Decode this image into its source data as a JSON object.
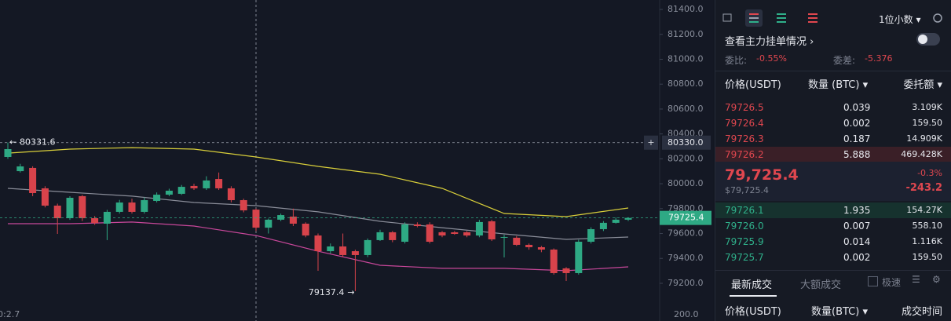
{
  "chart_data": {
    "type": "candlestick",
    "up_color": "#2ea984",
    "down_color": "#d8434b",
    "ylim": [
      79080,
      81476
    ],
    "yticks": [
      {
        "value": 81400,
        "label": "81400.0"
      },
      {
        "value": 81200,
        "label": "81200.0"
      },
      {
        "value": 81000,
        "label": "81000.0"
      },
      {
        "value": 80800,
        "label": "80800.0"
      },
      {
        "value": 80600,
        "label": "80600.0"
      },
      {
        "value": 80400,
        "label": "80400.0"
      },
      {
        "value": 80200,
        "label": "80200.0"
      },
      {
        "value": 80000,
        "label": "80000.0"
      },
      {
        "value": 79800,
        "label": "79800.0"
      },
      {
        "value": 79600,
        "label": "79600.0"
      },
      {
        "value": 79400,
        "label": "79400.0"
      },
      {
        "value": 79200,
        "label": "79200.0"
      }
    ],
    "open": [
      80215,
      80101,
      80127,
      79963,
      79824,
      79723,
      79900,
      79723,
      79679,
      79774,
      79849,
      79774,
      79862,
      79912,
      79919,
      79982,
      79963,
      80038,
      79963,
      79868,
      79792,
      79647,
      79711,
      79736,
      79679,
      79584,
      79458,
      79496,
      79458,
      79427,
      79547,
      79610,
      79534,
      79673,
      79673,
      79610,
      79610,
      79610,
      79584,
      79698,
      79566,
      79566,
      79509,
      79490,
      79471,
      79320,
      79282,
      79534,
      79635,
      79686,
      79711
    ],
    "high": [
      80331.6,
      80160,
      80140,
      79980,
      79840,
      79900,
      79910,
      79740,
      79790,
      79870,
      79880,
      79890,
      79930,
      79960,
      79990,
      80000,
      80060,
      80090,
      79980,
      79880,
      79800,
      79720,
      79760,
      79800,
      79690,
      79600,
      79520,
      79600,
      79470,
      79560,
      79630,
      79620,
      79690,
      79690,
      79690,
      79620,
      79620,
      79620,
      79710,
      79710,
      79590,
      79580,
      79520,
      79500,
      79480,
      79330,
      79550,
      79650,
      79700,
      79730,
      79730
    ],
    "low": [
      80200,
      80090,
      79900,
      79810,
      79597,
      79710,
      79700,
      79670,
      79547,
      79760,
      79760,
      79760,
      79850,
      79900,
      79910,
      79950,
      79950,
      79950,
      79850,
      79770,
      79620,
      79600,
      79700,
      79660,
      79570,
      79301,
      79440,
      79410,
      79137.4,
      79410,
      79540,
      79530,
      79520,
      79650,
      79520,
      79570,
      79590,
      79570,
      79570,
      79540,
      79408,
      79500,
      79470,
      79450,
      79270,
      79219,
      79270,
      79520,
      79620,
      79680,
      79700
    ],
    "close": [
      80278,
      80139,
      79925,
      79824,
      79723,
      79887,
      79723,
      79685,
      79774,
      79849,
      79774,
      79868,
      79912,
      79944,
      79975,
      79963,
      80026,
      79963,
      79868,
      79786,
      79647,
      79711,
      79748,
      79679,
      79584,
      79458,
      79496,
      79427,
      79427,
      79547,
      79610,
      79547,
      79673,
      79660,
      79534,
      79584,
      79597,
      79584,
      79692,
      79553,
      79572,
      79509,
      79490,
      79471,
      79282,
      79282,
      79534,
      79635,
      79686,
      79711,
      79725.4
    ],
    "bands": [
      {
        "color": "#d9cf3a",
        "x": [
          0,
          5,
          10,
          15,
          20,
          25,
          30,
          35,
          40,
          45,
          50
        ],
        "values": [
          80246,
          80278,
          80290,
          80278,
          80215,
          80139,
          80076,
          79963,
          79761,
          79736,
          79805
        ]
      },
      {
        "color": "#8a8d99",
        "x": [
          0,
          5,
          10,
          15,
          20,
          25,
          30,
          35,
          40,
          45,
          50
        ],
        "values": [
          79963,
          79931,
          79900,
          79849,
          79824,
          79774,
          79698,
          79647,
          79597,
          79553,
          79572
        ]
      },
      {
        "color": "#c8479a",
        "x": [
          0,
          5,
          10,
          15,
          20,
          25,
          30,
          35,
          40,
          45,
          50
        ],
        "values": [
          79679,
          79679,
          79692,
          79660,
          79584,
          79458,
          79345,
          79320,
          79320,
          79301,
          79332
        ]
      }
    ],
    "crosshair": {
      "value": 80330,
      "label": "80330.0"
    },
    "volume_axis_label": "200.0",
    "indicator_label": "0:2.7"
  },
  "order_book": {
    "precision": "1位小数",
    "depth_link": "查看主力挂单情况",
    "ratio_label": "委比:",
    "ratio": "-0.55%",
    "diff_label": "委差:",
    "diff": "-5.376",
    "headers": [
      "价格(USDT)",
      "数量 (BTC)",
      "委托额"
    ],
    "asks": [
      [
        "79726.5",
        "0.039",
        "3.109K"
      ],
      [
        "79726.4",
        "0.002",
        "159.50"
      ],
      [
        "79726.3",
        "0.187",
        "14.909K"
      ],
      [
        "79726.2",
        "5.888",
        "469.428K"
      ]
    ],
    "last_price": "79,725.4",
    "last_price_usd": "$79,725.4",
    "change_pct": "-0.3%",
    "change": "-243.2",
    "bids": [
      [
        "79726.1",
        "1.935",
        "154.27K"
      ],
      [
        "79726.0",
        "0.007",
        "558.10"
      ],
      [
        "79725.9",
        "0.014",
        "1.116K"
      ],
      [
        "79725.7",
        "0.002",
        "159.50"
      ]
    ]
  },
  "trades": {
    "tabs": [
      "最新成交",
      "大额成交"
    ],
    "fast": "极速",
    "headers": [
      "价格(USDT)",
      "数量(BTC)",
      "成交时间"
    ]
  }
}
